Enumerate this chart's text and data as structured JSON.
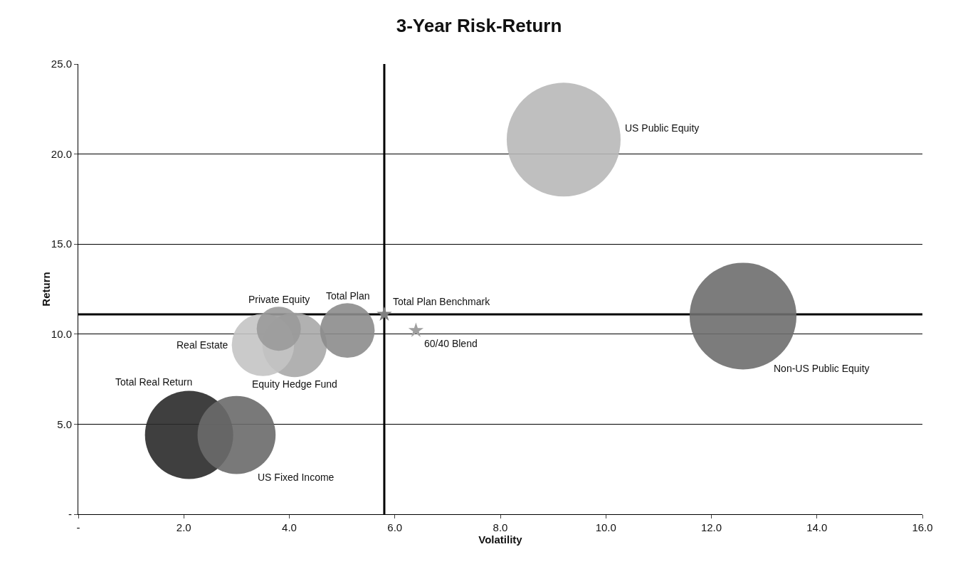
{
  "chart_data": {
    "type": "bubble",
    "title": "3-Year Risk-Return",
    "xlabel": "Volatility",
    "ylabel": "Return",
    "xlim": [
      0,
      16
    ],
    "ylim": [
      0,
      25
    ],
    "xticks": [
      {
        "value": 0,
        "label": "-"
      },
      {
        "value": 2,
        "label": "2.0"
      },
      {
        "value": 4,
        "label": "4.0"
      },
      {
        "value": 6,
        "label": "6.0"
      },
      {
        "value": 8,
        "label": "8.0"
      },
      {
        "value": 10,
        "label": "10.0"
      },
      {
        "value": 12,
        "label": "12.0"
      },
      {
        "value": 14,
        "label": "14.0"
      },
      {
        "value": 16,
        "label": "16.0"
      }
    ],
    "yticks": [
      {
        "value": 0,
        "label": "-"
      },
      {
        "value": 5,
        "label": "5.0"
      },
      {
        "value": 10,
        "label": "10.0"
      },
      {
        "value": 15,
        "label": "15.0"
      },
      {
        "value": 20,
        "label": "20.0"
      },
      {
        "value": 25,
        "label": "25.0"
      }
    ],
    "grid": "y",
    "series": [
      {
        "name": "US Public Equity",
        "color": "#b8b8b8",
        "x": [
          9.2
        ],
        "values": [
          20.8
        ],
        "sizes": [
          1
        ]
      },
      {
        "name": "Non-US Public Equity",
        "color": "#6e6e6e",
        "x": [
          12.6
        ],
        "values": [
          11.0
        ],
        "sizes": [
          0.88
        ]
      },
      {
        "name": "Total Real Return",
        "color": "#2a2a2a",
        "x": [
          2.1
        ],
        "values": [
          4.4
        ],
        "sizes": [
          0.6
        ]
      },
      {
        "name": "US Fixed Income",
        "color": "#6a6a6a",
        "x": [
          3.0
        ],
        "values": [
          4.4
        ],
        "sizes": [
          0.47
        ]
      },
      {
        "name": "Equity Hedge Fund",
        "color": "#a8a8a8",
        "x": [
          4.1
        ],
        "values": [
          9.4
        ],
        "sizes": [
          0.32
        ]
      },
      {
        "name": "Real Estate",
        "color": "#c4c4c4",
        "x": [
          3.5
        ],
        "values": [
          9.4
        ],
        "sizes": [
          0.3
        ]
      },
      {
        "name": "Private Equity",
        "color": "#9a9a9a",
        "x": [
          3.8
        ],
        "values": [
          10.3
        ],
        "sizes": [
          0.15
        ]
      },
      {
        "name": "Total Plan",
        "color": "#8c8c8c",
        "x": [
          5.1
        ],
        "values": [
          10.2
        ],
        "sizes": [
          0.23
        ]
      },
      {
        "name": "Total Plan Benchmark",
        "type": "scatter",
        "marker": "star",
        "color": "#808080",
        "x": [
          5.8
        ],
        "values": [
          11.1
        ]
      },
      {
        "name": "60/40 Blend",
        "type": "scatter",
        "marker": "star",
        "color": "#a0a0a0",
        "x": [
          6.4
        ],
        "values": [
          10.2
        ]
      }
    ],
    "ref_lines": [
      {
        "axis": "x",
        "value": 5.8,
        "color": "#000000"
      },
      {
        "axis": "y",
        "value": 11.1,
        "color": "#000000"
      }
    ]
  }
}
